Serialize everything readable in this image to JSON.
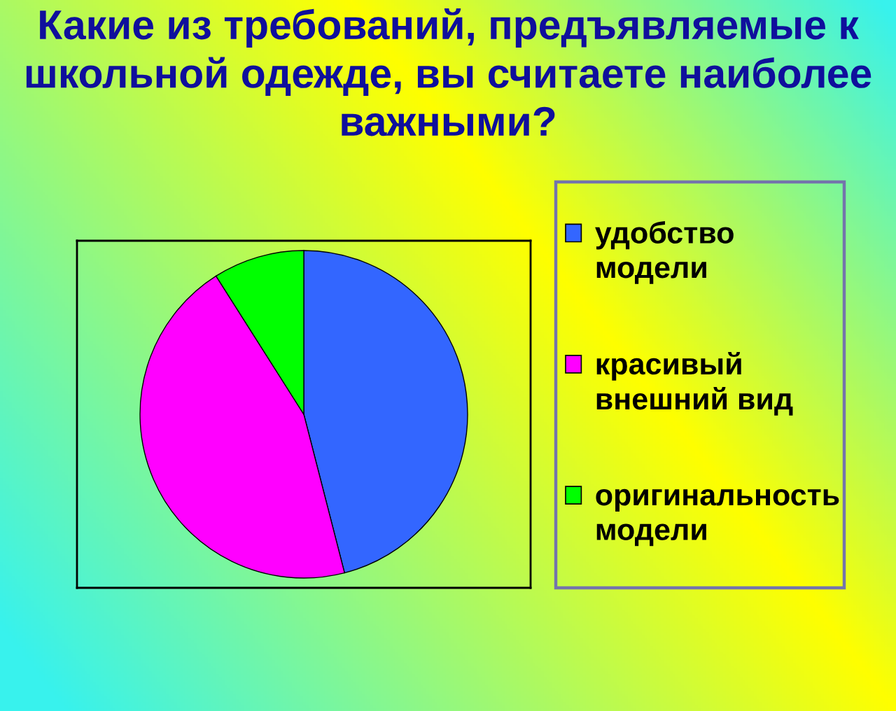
{
  "chart_data": {
    "type": "pie",
    "title": "Какие из требований, предъявляемые к\nшкольной одежде, вы считаете наиболее\nважными?",
    "categories": [
      "удобство модели",
      "красивый внешний вид",
      "оригинальность модели"
    ],
    "values": [
      46,
      45,
      9
    ],
    "colors": [
      "#3366ff",
      "#ff00ff",
      "#00ff00"
    ],
    "legend": "right"
  }
}
